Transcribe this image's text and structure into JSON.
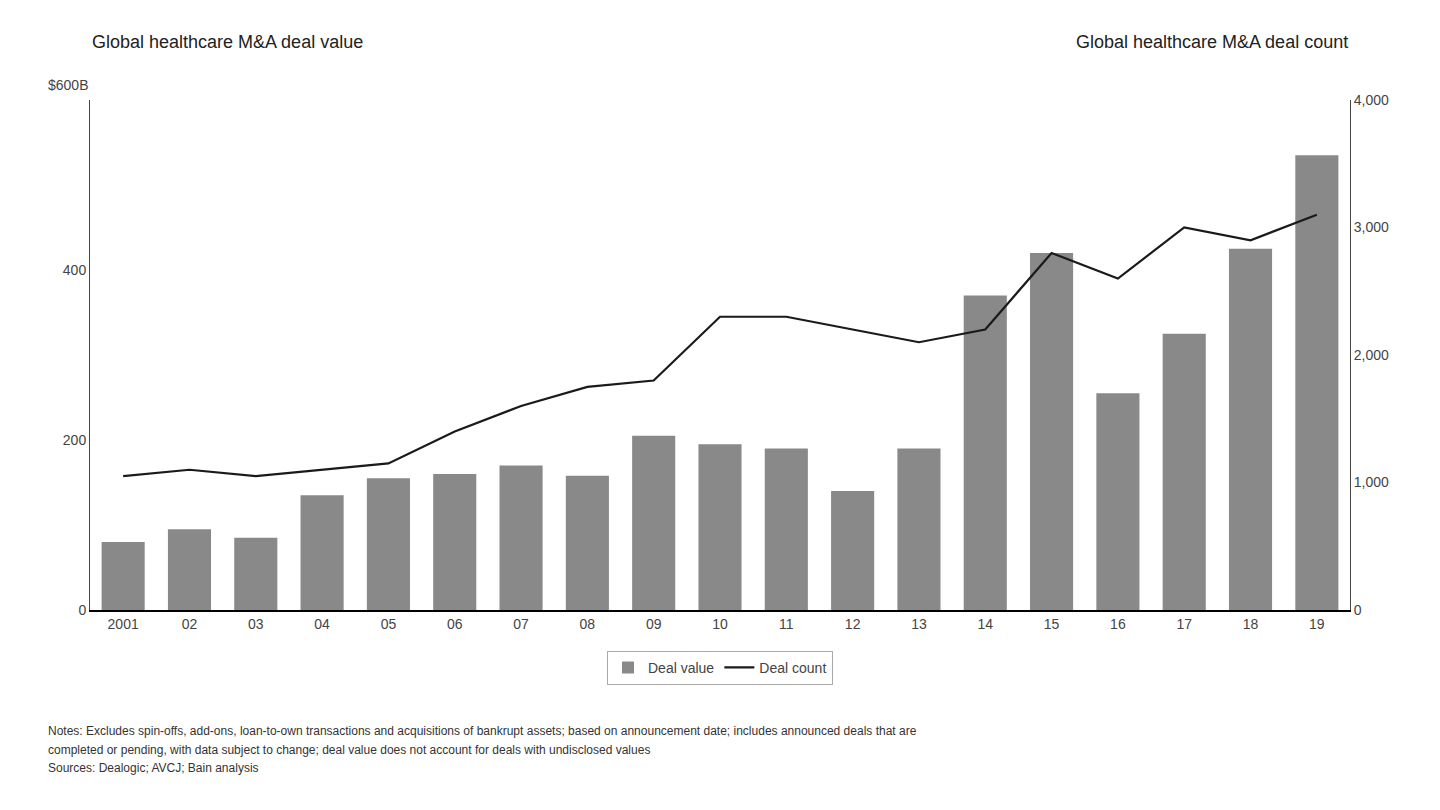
{
  "chart_data": {
    "type": "bar",
    "categories": [
      "2001",
      "02",
      "03",
      "04",
      "05",
      "06",
      "07",
      "08",
      "09",
      "10",
      "11",
      "12",
      "13",
      "14",
      "15",
      "16",
      "17",
      "18",
      "19"
    ],
    "series": [
      {
        "name": "Deal value",
        "type": "bar",
        "color": "#898989",
        "values": [
          80,
          95,
          85,
          135,
          155,
          160,
          170,
          158,
          205,
          195,
          190,
          140,
          190,
          370,
          420,
          255,
          325,
          425,
          535
        ]
      },
      {
        "name": "Deal count",
        "type": "line",
        "color": "#1a1a1a",
        "axis": "y2",
        "values": [
          1050,
          1100,
          1050,
          1100,
          1150,
          1400,
          1600,
          1750,
          1800,
          2300,
          2300,
          2200,
          2100,
          2200,
          2800,
          2600,
          3000,
          2900,
          3100
        ]
      }
    ],
    "ylabel": "Global healthcare M&A deal value",
    "y2label": "Global healthcare M&A deal count",
    "annotations": [
      "$600B"
    ],
    "notes": [
      "Notes: Excludes spin-offs, add-ons, loan-to-own transactions and acquisitions of bankrupt assets; based on announcement date; includes announced deals that are",
      "completed or pending, with data subject to change; deal value does not account for deals with undisclosed values",
      "Sources: Dealogic; AVCJ; Bain analysis"
    ],
    "ylim": [
      0,
      600
    ],
    "yticks": [
      0,
      200,
      400
    ],
    "y2lim": [
      0,
      4000
    ],
    "y2ticks": [
      0,
      {
        "value": 1000,
        "label": "1,000"
      },
      {
        "value": 2000,
        "label": "2,000"
      },
      {
        "value": 3000,
        "label": "3,000"
      },
      {
        "value": 4000,
        "label": "4,000"
      }
    ],
    "grid": false,
    "legend": "bottom"
  }
}
